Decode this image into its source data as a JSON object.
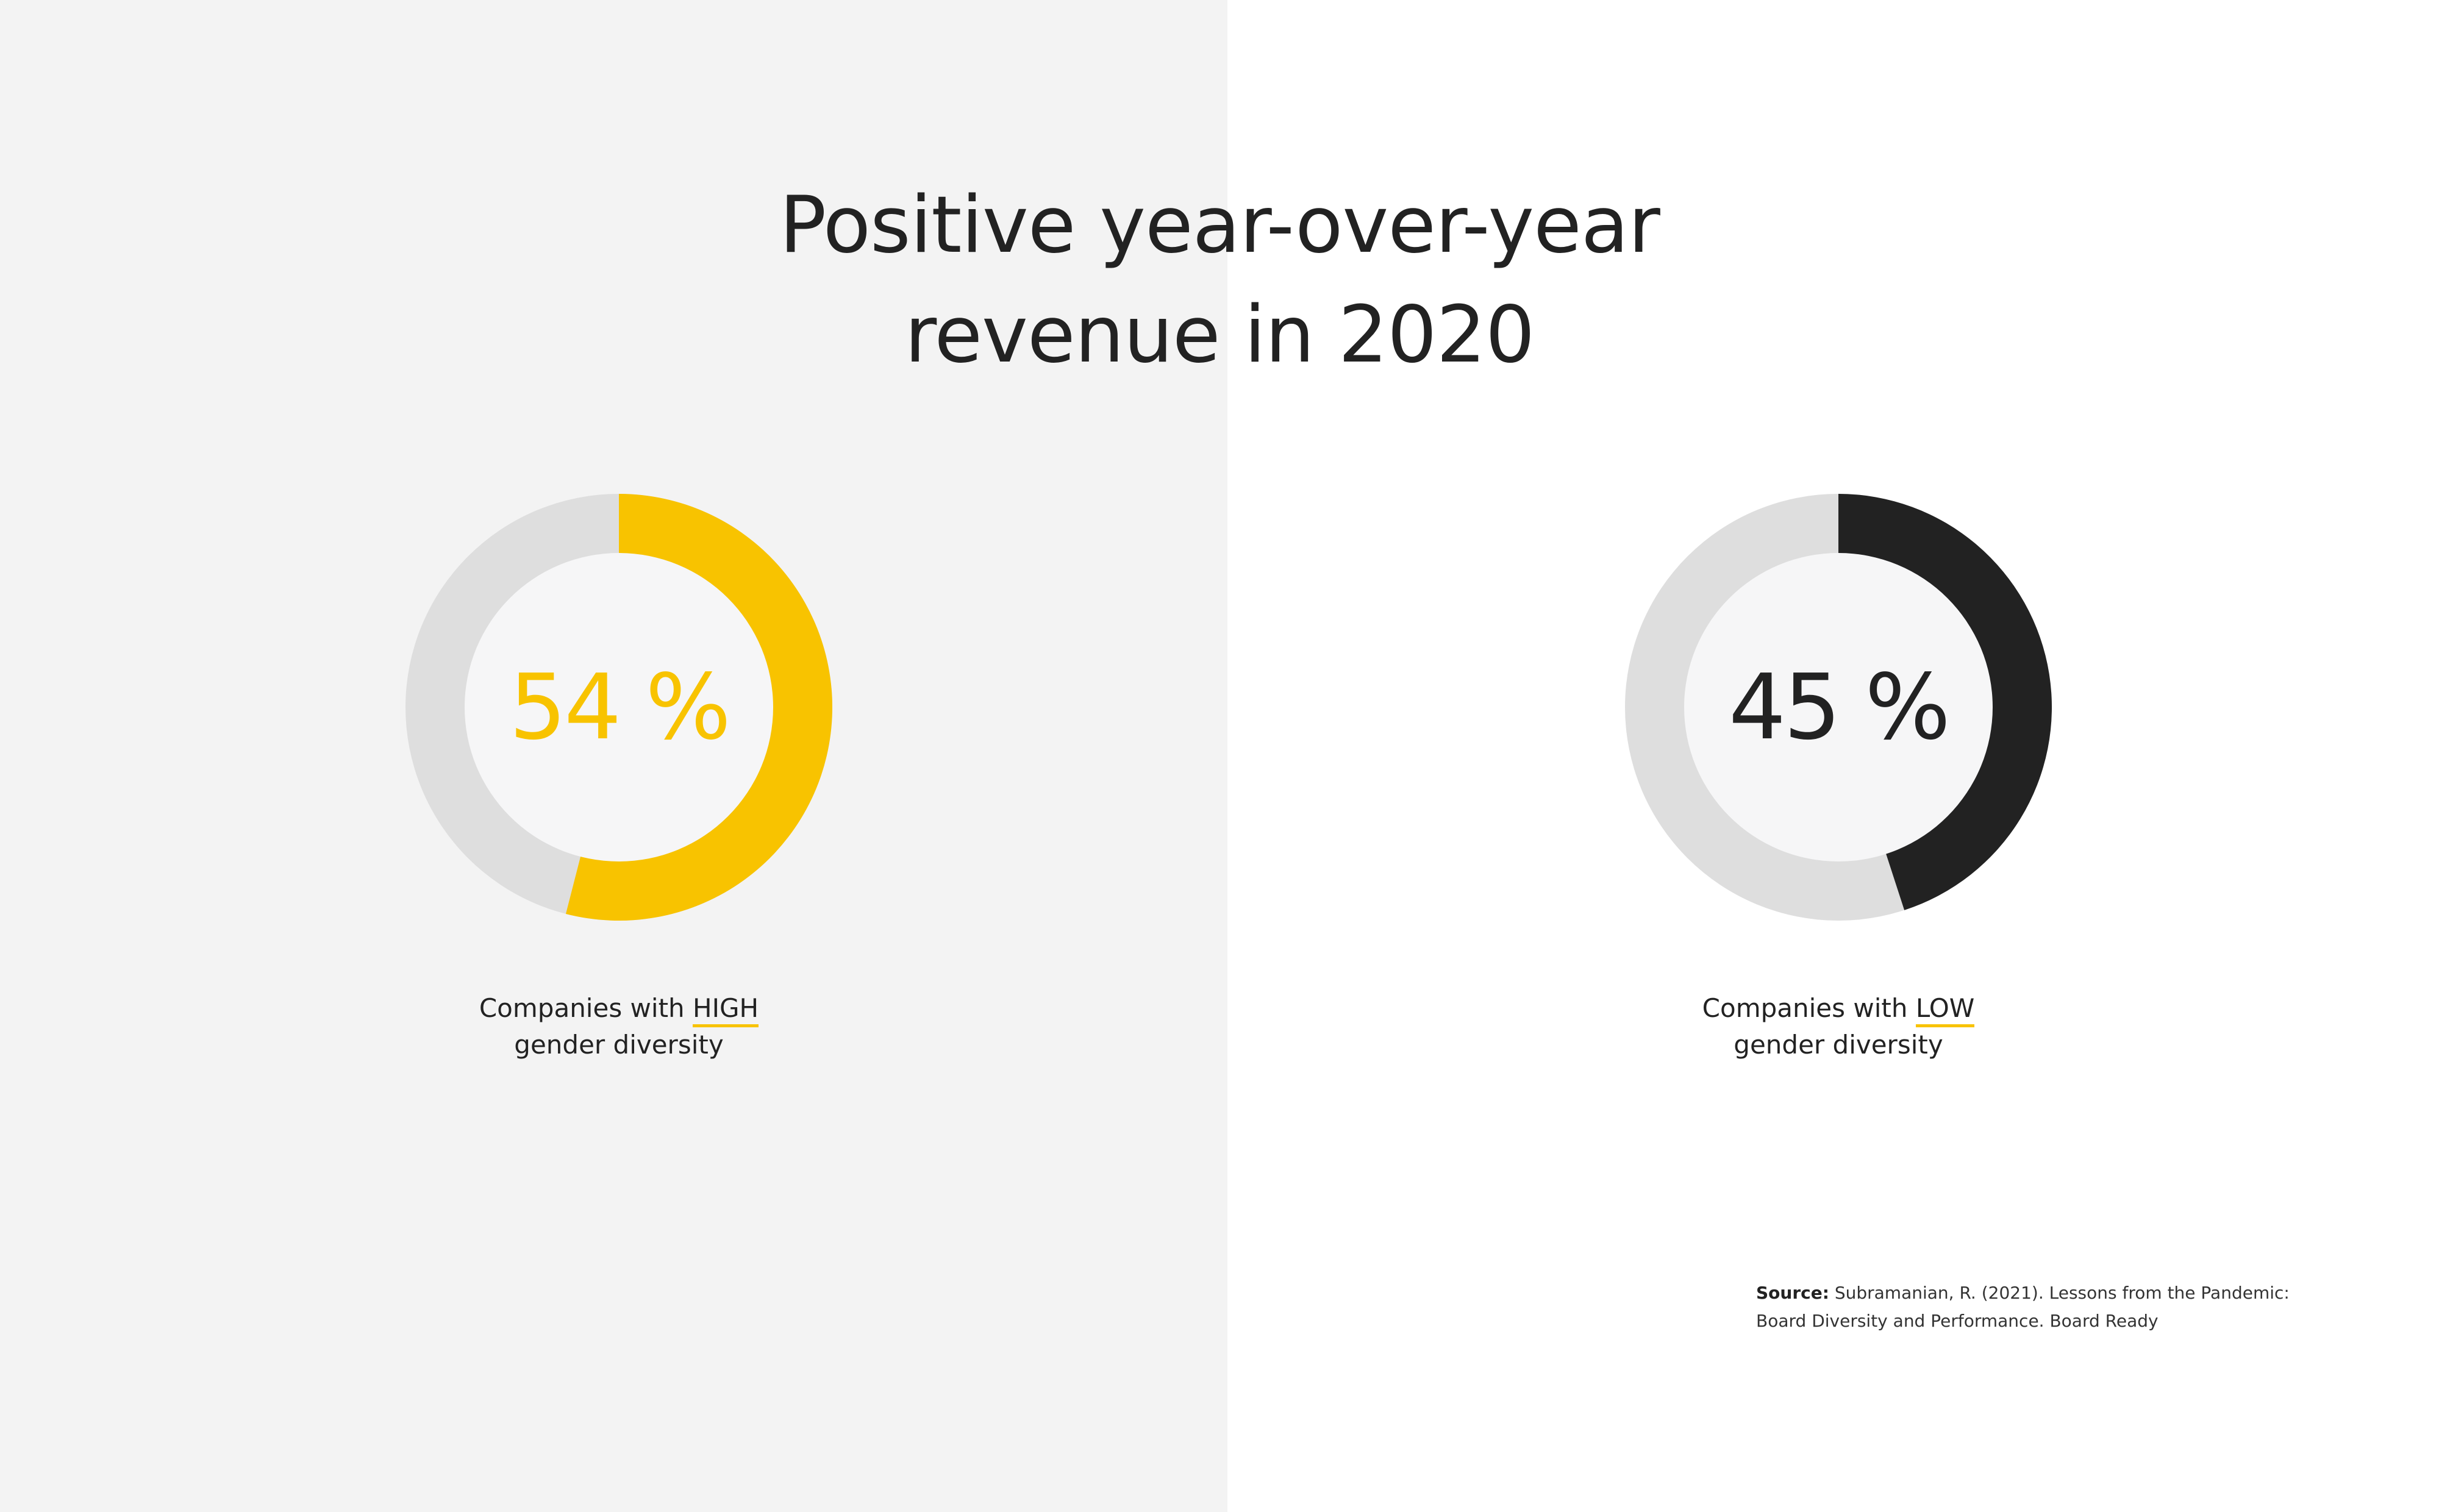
{
  "chart_data": [
    {
      "type": "pie",
      "subtype": "donut",
      "title": "Positive year-over-year revenue in 2020",
      "value": 54,
      "label": "54 %",
      "caption_prefix": "Companies with ",
      "caption_highlight": "HIGH",
      "caption_suffix": "gender diversity",
      "color": "#f8c300"
    },
    {
      "type": "pie",
      "subtype": "donut",
      "title": "Positive year-over-year revenue in 2020",
      "value": 45,
      "label": "45 %",
      "caption_prefix": "Companies with ",
      "caption_highlight": "LOW",
      "caption_suffix": "gender diversity",
      "color": "#222222"
    }
  ],
  "header": {
    "title_line1": "Positive year-over-year",
    "title_line2": "revenue in 2020"
  },
  "source": {
    "label": "Source:",
    "text": "Subramanian, R. (2021). Lessons from the Pandemic: Board Diversity and Performance. Board Ready"
  },
  "colors": {
    "track": "#dedede",
    "inner": "#f6f6f7",
    "left_background": "#f3f3f3",
    "right_background": "#ffffff"
  }
}
